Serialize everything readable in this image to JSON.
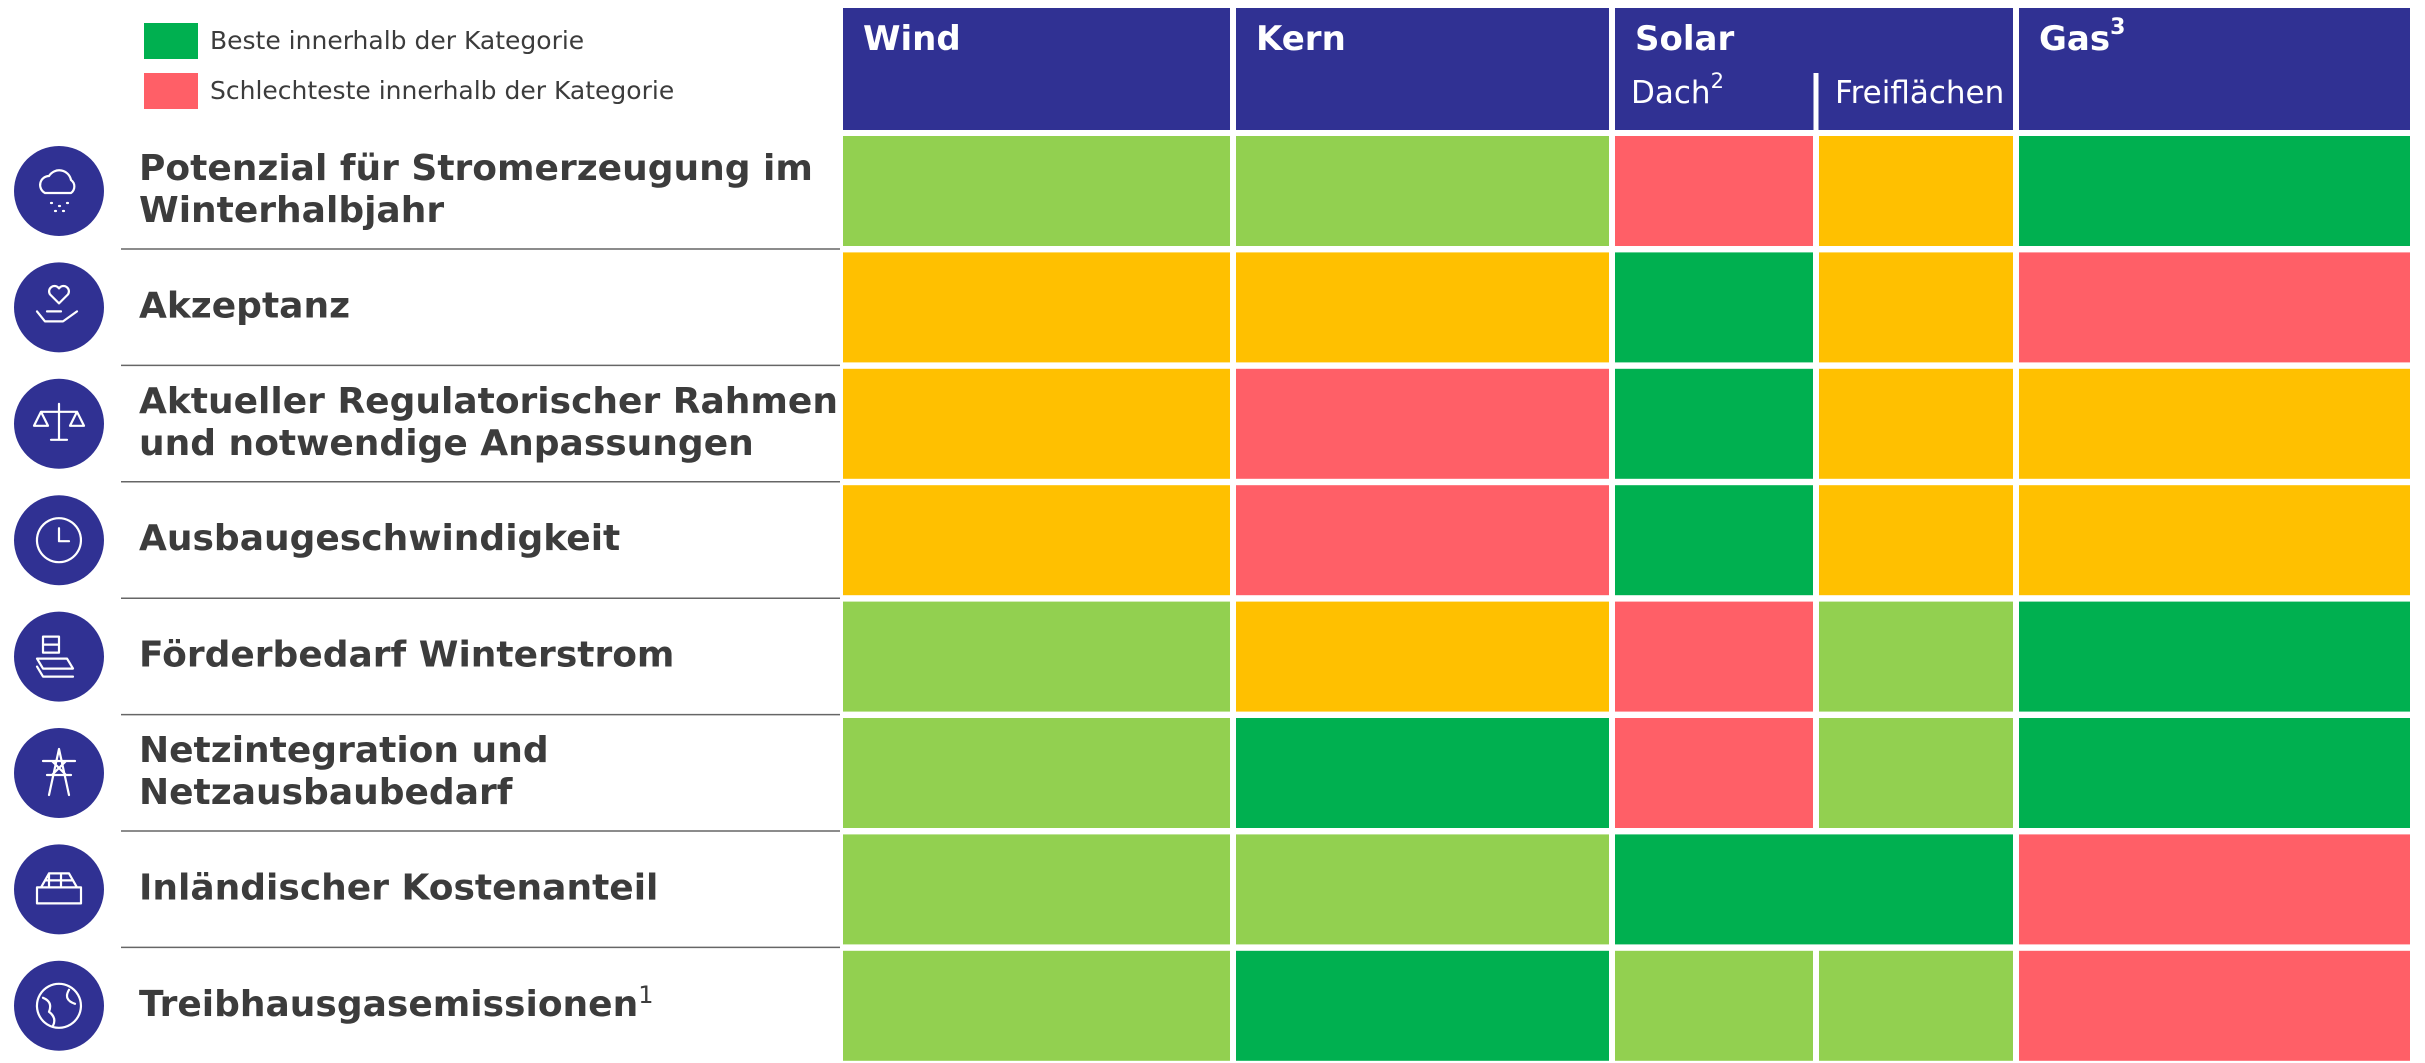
{
  "legend": [
    {
      "color": "#00b050",
      "label": "Beste innerhalb der Kategorie"
    },
    {
      "color": "#ff5f67",
      "label": "Schlechteste innerhalb der Kategorie"
    }
  ],
  "header_color": "#303193",
  "columns": [
    {
      "name": "Wind"
    },
    {
      "name": "Kern"
    },
    {
      "name": "Solar",
      "sub": [
        {
          "name": "Dach",
          "note": "2"
        },
        {
          "name": "Freiflächen"
        }
      ]
    },
    {
      "name": "Gas",
      "note": "3"
    }
  ],
  "rows": [
    {
      "lines": [
        "Potenzial für Stromerzeugung im",
        "Winterhalbjahr"
      ],
      "cells": [
        {
          "color": "#92d050"
        },
        {
          "color": "#92d050"
        },
        {
          "color": "#ff5f67"
        },
        {
          "color": "#ffc000"
        },
        {
          "color": "#00b050"
        }
      ]
    },
    {
      "lines": [
        "Akzeptanz"
      ],
      "cells": [
        {
          "color": "#ffc000"
        },
        {
          "color": "#ffc000"
        },
        {
          "color": "#00b050"
        },
        {
          "color": "#ffc000"
        },
        {
          "color": "#ff5f67"
        }
      ]
    },
    {
      "lines": [
        "Aktueller Regulatorischer Rahmen",
        "und notwendige Anpassungen"
      ],
      "cells": [
        {
          "color": "#ffc000"
        },
        {
          "color": "#ff5f67"
        },
        {
          "color": "#00b050"
        },
        {
          "color": "#ffc000"
        },
        {
          "color": "#ffc000"
        }
      ]
    },
    {
      "lines": [
        "Ausbaugeschwindigkeit"
      ],
      "cells": [
        {
          "color": "#ffc000"
        },
        {
          "color": "#ff5f67"
        },
        {
          "color": "#00b050"
        },
        {
          "color": "#ffc000"
        },
        {
          "color": "#ffc000"
        }
      ]
    },
    {
      "lines": [
        "Förderbedarf Winterstrom"
      ],
      "cells": [
        {
          "color": "#92d050"
        },
        {
          "color": "#ffc000"
        },
        {
          "color": "#ff5f67"
        },
        {
          "color": "#92d050"
        },
        {
          "color": "#00b050"
        }
      ]
    },
    {
      "lines": [
        "Netzintegration und",
        "Netzausbaubedarf"
      ],
      "cells": [
        {
          "color": "#92d050"
        },
        {
          "color": "#00b050"
        },
        {
          "color": "#ff5f67"
        },
        {
          "color": "#92d050"
        },
        {
          "color": "#00b050"
        }
      ]
    },
    {
      "lines": [
        "Inländischer Kostenanteil"
      ],
      "cells": [
        {
          "color": "#92d050"
        },
        {
          "color": "#92d050"
        },
        {
          "color": "#00b050",
          "span": 2
        },
        {
          "color": "#ff5f67"
        }
      ]
    },
    {
      "lines": [
        "Treibhausgasemissionen"
      ],
      "note": "1",
      "cells": [
        {
          "color": "#92d050"
        },
        {
          "color": "#00b050"
        },
        {
          "color": "#92d050"
        },
        {
          "color": "#92d050"
        },
        {
          "color": "#ff5f67"
        }
      ]
    }
  ]
}
